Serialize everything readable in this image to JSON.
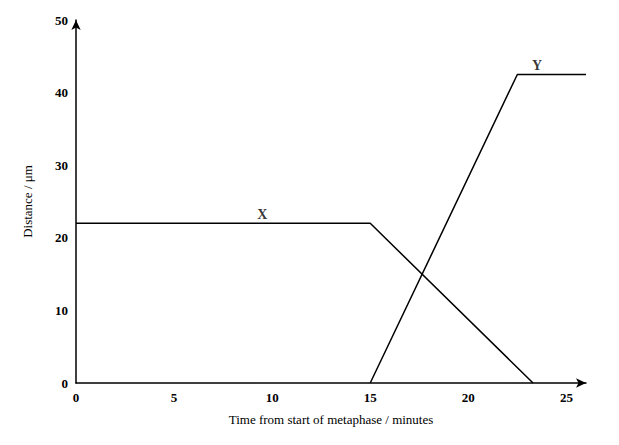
{
  "chart_data": {
    "type": "line",
    "x_label": "Time from start of metaphase / minutes",
    "y_label": "Distance / μm",
    "series": [
      {
        "name": "X",
        "color": "#000000",
        "x": [
          0,
          15,
          23.3
        ],
        "values": [
          22,
          22,
          0
        ]
      },
      {
        "name": "Y",
        "color": "#000000",
        "x": [
          15,
          22.5,
          26
        ],
        "values": [
          0,
          42.5,
          42.5
        ]
      }
    ],
    "annotations": [
      {
        "text": "X",
        "x": 9.5,
        "y": 22
      },
      {
        "text": "Y",
        "x": 23.5,
        "y": 42.5
      }
    ],
    "xlim": [
      0,
      26
    ],
    "xticks": [
      0,
      5,
      10,
      15,
      20,
      25
    ],
    "ylim": [
      0,
      50
    ],
    "yticks": [
      0,
      10,
      20,
      30,
      40,
      50
    ],
    "grid": false
  }
}
